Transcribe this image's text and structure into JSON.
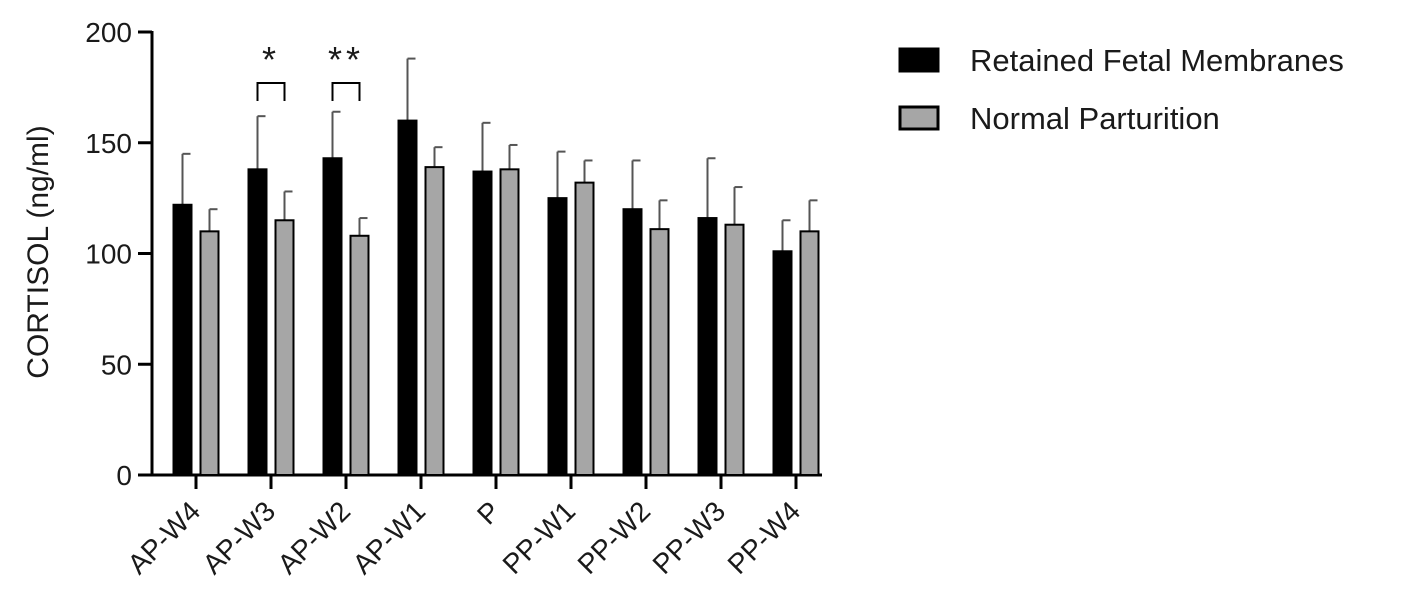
{
  "chart_data": {
    "type": "bar",
    "ylabel": "CORTISOL (ng/ml)",
    "xlabel": "",
    "ylim": [
      0,
      200
    ],
    "yticks": [
      0,
      50,
      100,
      150,
      200
    ],
    "grid": false,
    "legend_position": "top-right",
    "categories": [
      "AP-W4",
      "AP-W3",
      "AP-W2",
      "AP-W1",
      "P",
      "PP-W1",
      "PP-W2",
      "PP-W3",
      "PP-W4"
    ],
    "series": [
      {
        "name": "Retained Fetal Membranes",
        "color": "#000000",
        "values": [
          122,
          138,
          143,
          160,
          137,
          125,
          120,
          116,
          101
        ],
        "errors": [
          23,
          24,
          21,
          28,
          22,
          21,
          22,
          27,
          14
        ]
      },
      {
        "name": "Normal Parturition",
        "color": "#a6a6a6",
        "values": [
          110,
          115,
          108,
          139,
          138,
          132,
          111,
          113,
          110
        ],
        "errors": [
          10,
          13,
          8,
          9,
          11,
          10,
          13,
          17,
          14
        ]
      }
    ],
    "annotations": [
      {
        "category": "AP-W3",
        "text": "*"
      },
      {
        "category": "AP-W2",
        "text": "**"
      }
    ]
  }
}
